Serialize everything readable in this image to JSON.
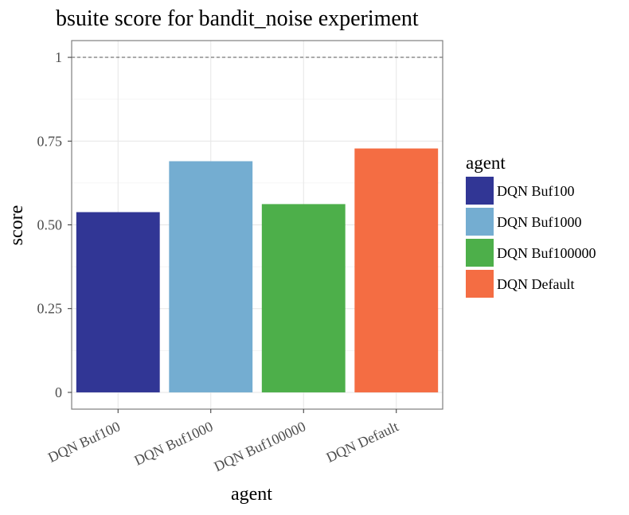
{
  "chart_data": {
    "type": "bar",
    "title": "bsuite score for bandit_noise experiment",
    "xlabel": "agent",
    "ylabel": "score",
    "categories": [
      "DQN Buf100",
      "DQN Buf1000",
      "DQN Buf100000",
      "DQN Default"
    ],
    "values": [
      0.538,
      0.69,
      0.562,
      0.728
    ],
    "colors": [
      "#313695",
      "#74add1",
      "#4daf4a",
      "#f46d43"
    ],
    "ylim": [
      -0.05,
      1.05
    ],
    "yticks": [
      0,
      0.25,
      0.5,
      0.75,
      1
    ],
    "ytick_labels": [
      "0",
      "0.25",
      "0.50",
      "0.75",
      "1"
    ],
    "reference_line": 1,
    "grid": true,
    "legend": {
      "title": "agent",
      "placement": "right",
      "entries": [
        "DQN Buf100",
        "DQN Buf1000",
        "DQN Buf100000",
        "DQN Default"
      ]
    }
  }
}
